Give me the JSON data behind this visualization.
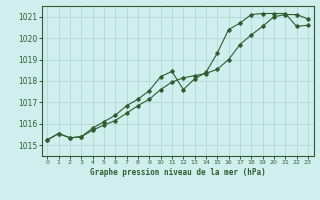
{
  "title": "Graphe pression niveau de la mer (hPa)",
  "bg_color": "#d0eeee",
  "line_color": "#2d5e2d",
  "grid_color": "#b0d8d8",
  "xlim": [
    -0.5,
    23.5
  ],
  "ylim": [
    1014.5,
    1021.5
  ],
  "yticks": [
    1015,
    1016,
    1017,
    1018,
    1019,
    1020,
    1021
  ],
  "xticks": [
    0,
    1,
    2,
    3,
    4,
    5,
    6,
    7,
    8,
    9,
    10,
    11,
    12,
    13,
    14,
    15,
    16,
    17,
    18,
    19,
    20,
    21,
    22,
    23
  ],
  "series1_x": [
    0,
    1,
    2,
    3,
    4,
    5,
    6,
    7,
    8,
    9,
    10,
    11,
    12,
    13,
    14,
    15,
    16,
    17,
    18,
    19,
    20,
    21,
    22,
    23
  ],
  "series1_y": [
    1015.25,
    1015.55,
    1015.35,
    1015.4,
    1015.7,
    1015.95,
    1016.15,
    1016.5,
    1016.85,
    1017.15,
    1017.6,
    1017.95,
    1018.15,
    1018.25,
    1018.35,
    1018.55,
    1019.0,
    1019.7,
    1020.15,
    1020.55,
    1021.0,
    1021.1,
    1021.1,
    1020.9
  ],
  "series2_x": [
    0,
    1,
    2,
    3,
    4,
    5,
    6,
    7,
    8,
    9,
    10,
    11,
    12,
    13,
    14,
    15,
    16,
    17,
    18,
    19,
    20,
    21,
    22,
    23
  ],
  "series2_y": [
    1015.25,
    1015.55,
    1015.35,
    1015.4,
    1015.8,
    1016.1,
    1016.4,
    1016.85,
    1017.15,
    1017.55,
    1018.2,
    1018.45,
    1017.6,
    1018.1,
    1018.4,
    1019.3,
    1020.4,
    1020.7,
    1021.1,
    1021.15,
    1021.15,
    1021.15,
    1020.55,
    1020.6
  ]
}
